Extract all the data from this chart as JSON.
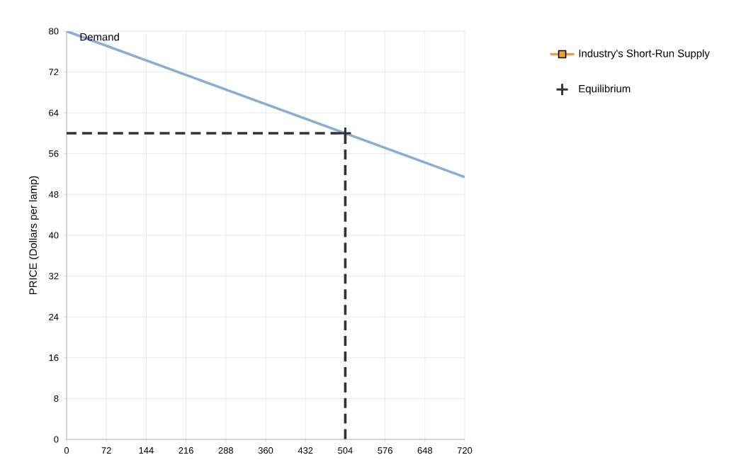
{
  "chart_data": {
    "type": "line",
    "ylabel": "PRICE (Dollars per lamp)",
    "xlim": [
      0,
      720
    ],
    "xticks": [
      0,
      72,
      144,
      216,
      288,
      360,
      432,
      504,
      576,
      648,
      720
    ],
    "ylim": [
      0,
      80
    ],
    "yticks": [
      0,
      8,
      16,
      24,
      32,
      40,
      48,
      56,
      64,
      72,
      80
    ],
    "grid": true,
    "legend": "right",
    "series": [
      {
        "name": "Demand",
        "color": "#8aafd4",
        "x": [
          0,
          720
        ],
        "values": [
          80,
          51.4
        ],
        "marker": "none",
        "line_style": "solid"
      },
      {
        "color": "#333333",
        "x": [
          0,
          504,
          504
        ],
        "values": [
          60,
          60,
          0
        ],
        "marker": "none",
        "line_style": "dashed"
      },
      {
        "name": "Industry's Short-Run Supply",
        "color": "#f0a030",
        "marker": "square",
        "line_style": "solid"
      },
      {
        "name": "Equilibrium",
        "type": "scatter",
        "color": "#333333",
        "x": [
          504
        ],
        "values": [
          60
        ],
        "marker": "cross"
      }
    ]
  }
}
